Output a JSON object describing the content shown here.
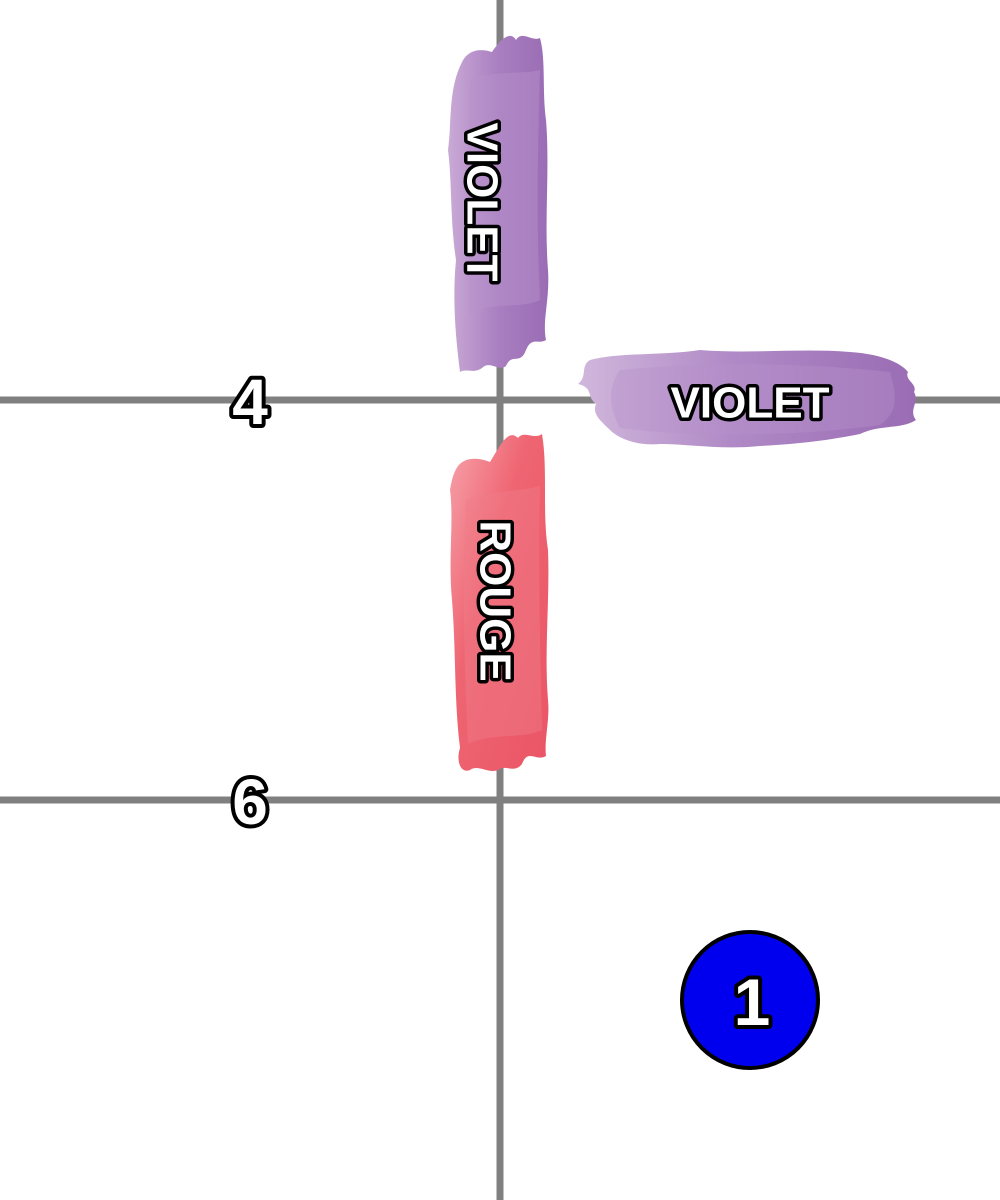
{
  "row_labels": {
    "row_4": "4",
    "row_6": "6"
  },
  "pieces": {
    "top": {
      "label": "VIOLET",
      "color": "violet",
      "orientation": "vertical"
    },
    "right": {
      "label": "VIOLET",
      "color": "violet",
      "orientation": "horizontal"
    },
    "bottom": {
      "label": "ROUGE",
      "color": "red",
      "orientation": "vertical"
    }
  },
  "token": {
    "label": "1",
    "color": "#0000ee"
  },
  "colors": {
    "grid_line": "#808080",
    "violet": "#a77bbd",
    "violet_light": "#c7a8d4",
    "rouge": "#ee5d6c",
    "rouge_light": "#f49aa2",
    "token": "#0000ee"
  }
}
